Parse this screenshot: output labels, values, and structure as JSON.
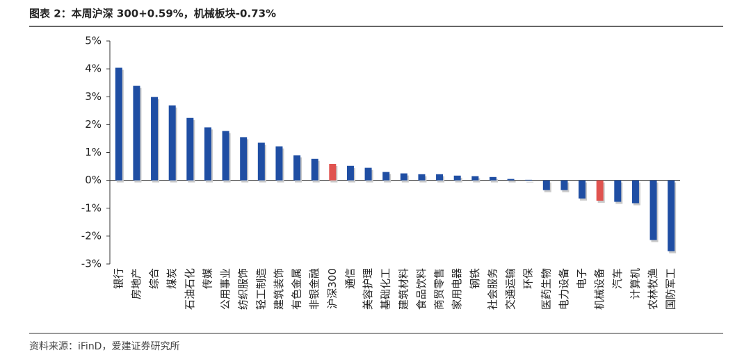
{
  "chart_data": {
    "type": "bar",
    "title": "图表 2：本周沪深 300+0.59%，机械板块-0.73%",
    "source": "资料来源：iFinD，爱建证券研究所",
    "categories": [
      "银行",
      "房地产",
      "综合",
      "煤炭",
      "石油石化",
      "传媒",
      "公用事业",
      "纺织服饰",
      "轻工制造",
      "建筑装饰",
      "有色金属",
      "非银金融",
      "沪深300",
      "通信",
      "美容护理",
      "基础化工",
      "建筑材料",
      "食品饮料",
      "商贸零售",
      "家用电器",
      "钢铁",
      "社会服务",
      "交通运输",
      "环保",
      "医药生物",
      "电力设备",
      "电子",
      "机械设备",
      "汽车",
      "计算机",
      "农林牧渔",
      "国防军工"
    ],
    "values": [
      4.04,
      3.39,
      2.99,
      2.69,
      2.24,
      1.9,
      1.77,
      1.55,
      1.35,
      1.22,
      0.9,
      0.77,
      0.59,
      0.52,
      0.45,
      0.3,
      0.25,
      0.22,
      0.22,
      0.17,
      0.15,
      0.12,
      0.05,
      0.02,
      -0.35,
      -0.35,
      -0.65,
      -0.73,
      -0.77,
      -0.82,
      -2.14,
      -2.54
    ],
    "colors": [
      "#1f4ea3",
      "#1f4ea3",
      "#1f4ea3",
      "#1f4ea3",
      "#1f4ea3",
      "#1f4ea3",
      "#1f4ea3",
      "#1f4ea3",
      "#1f4ea3",
      "#1f4ea3",
      "#1f4ea3",
      "#1f4ea3",
      "#e0534f",
      "#1f4ea3",
      "#1f4ea3",
      "#1f4ea3",
      "#1f4ea3",
      "#1f4ea3",
      "#1f4ea3",
      "#1f4ea3",
      "#1f4ea3",
      "#1f4ea3",
      "#1f4ea3",
      "#1f4ea3",
      "#1f4ea3",
      "#1f4ea3",
      "#1f4ea3",
      "#e0534f",
      "#1f4ea3",
      "#1f4ea3",
      "#1f4ea3",
      "#1f4ea3"
    ],
    "ylim": [
      -3,
      5
    ],
    "yticks": [
      {
        "value": -3,
        "label": "-3%"
      },
      {
        "value": -2,
        "label": "-2%"
      },
      {
        "value": -1,
        "label": "-1%"
      },
      {
        "value": 0,
        "label": "0%"
      },
      {
        "value": 1,
        "label": "1%"
      },
      {
        "value": 2,
        "label": "2%"
      },
      {
        "value": 3,
        "label": "3%"
      },
      {
        "value": 4,
        "label": "4%"
      },
      {
        "value": 5,
        "label": "5%"
      }
    ]
  }
}
